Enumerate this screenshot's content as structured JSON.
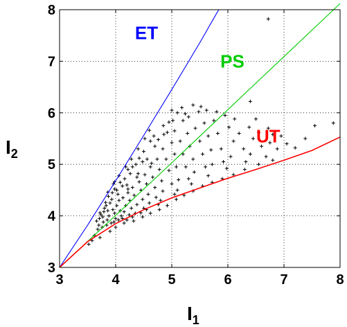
{
  "chart_data": {
    "type": "scatter",
    "xlabel": "I",
    "xlabel_sub": "1",
    "ylabel": "I",
    "ylabel_sub": "2",
    "xlim": [
      3,
      8
    ],
    "ylim": [
      3,
      8
    ],
    "xticks": [
      3,
      4,
      5,
      6,
      7,
      8
    ],
    "yticks": [
      3,
      4,
      5,
      6,
      7,
      8
    ],
    "grid": true,
    "curves": [
      {
        "label": "ET",
        "color": "#0000ff",
        "points": [
          [
            3,
            3
          ],
          [
            3.5,
            3.82
          ],
          [
            4,
            4.68
          ],
          [
            4.5,
            5.56
          ],
          [
            5,
            6.45
          ],
          [
            5.5,
            7.36
          ],
          [
            5.8,
            7.93
          ],
          [
            5.84,
            8
          ]
        ]
      },
      {
        "label": "PS",
        "color": "#00cc00",
        "points": [
          [
            3,
            3
          ],
          [
            4,
            4.01
          ],
          [
            5,
            5.03
          ],
          [
            6,
            6.06
          ],
          [
            7,
            7.09
          ],
          [
            8,
            8.12
          ]
        ]
      },
      {
        "label": "UT",
        "color": "#ff0000",
        "points": [
          [
            3,
            3
          ],
          [
            3.5,
            3.5
          ],
          [
            4,
            3.85
          ],
          [
            4.5,
            4.12
          ],
          [
            5,
            4.35
          ],
          [
            5.5,
            4.54
          ],
          [
            6,
            4.73
          ],
          [
            6.5,
            4.9
          ],
          [
            7,
            5.08
          ],
          [
            7.5,
            5.27
          ],
          [
            8,
            5.53
          ]
        ]
      }
    ],
    "scatter_points": [
      [
        3.52,
        3.45
      ],
      [
        3.58,
        3.52
      ],
      [
        3.72,
        3.58
      ],
      [
        3.62,
        3.62
      ],
      [
        3.68,
        3.74
      ],
      [
        3.7,
        3.82
      ],
      [
        3.66,
        3.9
      ],
      [
        3.71,
        3.95
      ],
      [
        3.74,
        4.02
      ],
      [
        3.77,
        3.98
      ],
      [
        3.79,
        4.08
      ],
      [
        3.72,
        4.06
      ],
      [
        3.8,
        4.15
      ],
      [
        3.83,
        4.2
      ],
      [
        3.78,
        3.88
      ],
      [
        3.85,
        3.92
      ],
      [
        3.88,
        4.0
      ],
      [
        3.86,
        4.1
      ],
      [
        3.9,
        4.25
      ],
      [
        3.93,
        4.32
      ],
      [
        3.82,
        4.26
      ],
      [
        3.95,
        4.12
      ],
      [
        3.98,
        4.05
      ],
      [
        4.0,
        3.95
      ],
      [
        3.92,
        3.86
      ],
      [
        3.84,
        3.82
      ],
      [
        3.76,
        3.78
      ],
      [
        3.87,
        4.38
      ],
      [
        3.94,
        4.45
      ],
      [
        3.98,
        4.52
      ],
      [
        4.02,
        4.5
      ],
      [
        4.04,
        4.42
      ],
      [
        4.06,
        4.3
      ],
      [
        4.02,
        4.2
      ],
      [
        4.08,
        4.1
      ],
      [
        4.1,
        4.0
      ],
      [
        4.05,
        3.92
      ],
      [
        3.97,
        3.88
      ],
      [
        4.12,
        3.95
      ],
      [
        4.15,
        4.08
      ],
      [
        4.18,
        4.2
      ],
      [
        4.13,
        4.35
      ],
      [
        4.12,
        4.58
      ],
      [
        4.08,
        4.65
      ],
      [
        4.16,
        4.72
      ],
      [
        4.2,
        4.6
      ],
      [
        4.22,
        4.45
      ],
      [
        4.25,
        4.3
      ],
      [
        4.28,
        4.15
      ],
      [
        4.24,
        4.02
      ],
      [
        4.3,
        3.98
      ],
      [
        4.2,
        3.92
      ],
      [
        4.35,
        4.05
      ],
      [
        4.38,
        4.22
      ],
      [
        4.33,
        4.4
      ],
      [
        4.3,
        4.55
      ],
      [
        4.26,
        4.82
      ],
      [
        4.22,
        4.9
      ],
      [
        4.3,
        4.95
      ],
      [
        4.36,
        5.0
      ],
      [
        4.4,
        4.82
      ],
      [
        4.42,
        4.66
      ],
      [
        4.45,
        4.5
      ],
      [
        4.48,
        4.32
      ],
      [
        4.5,
        4.15
      ],
      [
        4.45,
        4.06
      ],
      [
        4.55,
        4.12
      ],
      [
        4.6,
        4.25
      ],
      [
        4.58,
        4.42
      ],
      [
        4.55,
        4.62
      ],
      [
        4.52,
        4.8
      ],
      [
        4.48,
        5.05
      ],
      [
        4.42,
        5.12
      ],
      [
        4.5,
        5.25
      ],
      [
        4.56,
        5.1
      ],
      [
        4.62,
        4.95
      ],
      [
        4.66,
        4.75
      ],
      [
        4.7,
        4.55
      ],
      [
        4.72,
        4.36
      ],
      [
        4.76,
        4.22
      ],
      [
        4.8,
        4.3
      ],
      [
        4.84,
        4.48
      ],
      [
        4.82,
        4.68
      ],
      [
        4.78,
        4.9
      ],
      [
        4.74,
        5.1
      ],
      [
        4.7,
        5.35
      ],
      [
        4.62,
        5.45
      ],
      [
        4.68,
        5.55
      ],
      [
        4.76,
        5.48
      ],
      [
        4.84,
        5.3
      ],
      [
        4.9,
        5.1
      ],
      [
        4.95,
        4.88
      ],
      [
        5.0,
        4.62
      ],
      [
        5.05,
        4.42
      ],
      [
        5.1,
        4.5
      ],
      [
        5.12,
        4.7
      ],
      [
        5.08,
        4.95
      ],
      [
        5.05,
        5.2
      ],
      [
        5.0,
        5.42
      ],
      [
        4.92,
        5.62
      ],
      [
        4.85,
        5.75
      ],
      [
        4.95,
        5.82
      ],
      [
        5.05,
        5.65
      ],
      [
        5.15,
        5.45
      ],
      [
        5.2,
        5.2
      ],
      [
        5.25,
        4.95
      ],
      [
        5.3,
        4.72
      ],
      [
        5.35,
        4.62
      ],
      [
        5.4,
        4.85
      ],
      [
        5.38,
        5.1
      ],
      [
        5.32,
        5.35
      ],
      [
        5.28,
        5.6
      ],
      [
        5.2,
        5.85
      ],
      [
        5.1,
        6.0
      ],
      [
        5.0,
        6.05
      ],
      [
        5.18,
        6.1
      ],
      [
        5.3,
        5.92
      ],
      [
        5.42,
        5.7
      ],
      [
        5.5,
        5.45
      ],
      [
        5.55,
        5.2
      ],
      [
        5.6,
        4.95
      ],
      [
        5.65,
        4.78
      ],
      [
        5.72,
        5.0
      ],
      [
        5.7,
        5.28
      ],
      [
        5.65,
        5.55
      ],
      [
        5.58,
        5.8
      ],
      [
        5.48,
        6.02
      ],
      [
        5.38,
        6.15
      ],
      [
        5.62,
        6.05
      ],
      [
        5.75,
        5.85
      ],
      [
        5.82,
        5.6
      ],
      [
        5.88,
        5.3
      ],
      [
        5.92,
        5.05
      ],
      [
        5.98,
        4.92
      ],
      [
        6.05,
        5.15
      ],
      [
        6.1,
        5.45
      ],
      [
        6.02,
        5.72
      ],
      [
        5.95,
        5.95
      ],
      [
        6.12,
        5.88
      ],
      [
        6.2,
        5.6
      ],
      [
        6.28,
        5.3
      ],
      [
        6.32,
        5.05
      ],
      [
        6.4,
        5.2
      ],
      [
        6.45,
        5.5
      ],
      [
        6.38,
        5.72
      ],
      [
        6.5,
        5.88
      ],
      [
        6.55,
        5.62
      ],
      [
        6.6,
        5.35
      ],
      [
        6.68,
        5.15
      ],
      [
        6.75,
        5.42
      ],
      [
        6.72,
        5.7
      ],
      [
        6.8,
        5.58
      ],
      [
        6.88,
        5.3
      ],
      [
        6.95,
        5.55
      ],
      [
        7.05,
        5.4
      ],
      [
        7.2,
        5.32
      ],
      [
        7.38,
        5.5
      ],
      [
        7.55,
        5.75
      ],
      [
        7.88,
        5.8
      ],
      [
        6.4,
        6.22
      ],
      [
        6.72,
        7.82
      ],
      [
        4.0,
        3.78
      ],
      [
        4.15,
        3.86
      ],
      [
        4.32,
        3.9
      ],
      [
        4.48,
        3.98
      ],
      [
        4.62,
        4.05
      ],
      [
        4.78,
        4.12
      ],
      [
        4.92,
        4.2
      ],
      [
        5.08,
        4.32
      ],
      [
        5.22,
        4.4
      ],
      [
        5.38,
        4.48
      ],
      [
        5.55,
        4.58
      ],
      [
        5.72,
        4.65
      ],
      [
        5.9,
        4.72
      ],
      [
        6.1,
        4.8
      ],
      [
        6.3,
        4.9
      ],
      [
        6.55,
        5.0
      ],
      [
        6.8,
        5.08
      ],
      [
        3.9,
        3.7
      ],
      [
        4.22,
        4.52
      ],
      [
        4.38,
        4.75
      ],
      [
        4.64,
        5.02
      ],
      [
        4.86,
        5.58
      ],
      [
        5.02,
        5.85
      ],
      [
        5.24,
        5.98
      ],
      [
        5.52,
        6.12
      ],
      [
        5.8,
        6.02
      ],
      [
        3.96,
        4.62
      ],
      [
        4.06,
        4.78
      ],
      [
        4.18,
        4.95
      ],
      [
        4.28,
        5.1
      ],
      [
        4.4,
        5.3
      ],
      [
        4.52,
        5.5
      ],
      [
        4.6,
        5.66
      ],
      [
        3.86,
        4.46
      ],
      [
        3.98,
        4.66
      ]
    ]
  }
}
